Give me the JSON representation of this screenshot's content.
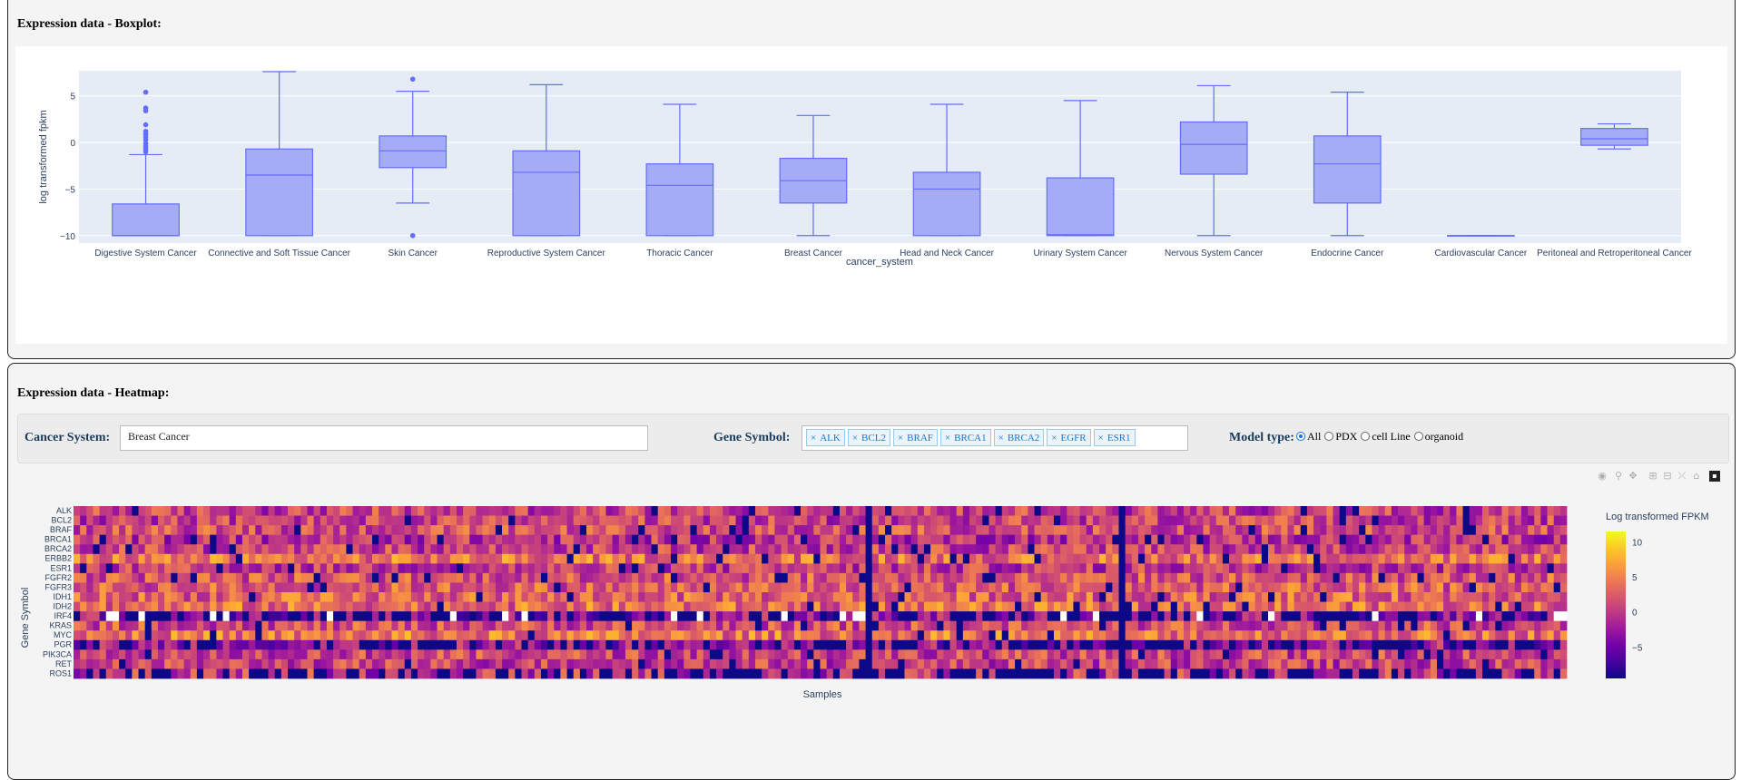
{
  "boxplot": {
    "title": "Expression data - Boxplot:",
    "chart_data": {
      "type": "box",
      "xlabel": "cancer_system",
      "ylabel": "log transformed fpkm",
      "ylim": [
        -10.8,
        7.7
      ],
      "yticks": [
        -10,
        -5,
        0,
        5
      ],
      "ytick_labels": [
        "−10",
        "−5",
        "0",
        "5"
      ],
      "color": "#636efa",
      "fill": "#a5abf4",
      "background": "#e5ecf6",
      "categories": [
        "Digestive System Cancer",
        "Connective and Soft Tissue Cancer",
        "Skin Cancer",
        "Reproductive System Cancer",
        "Thoracic Cancer",
        "Breast Cancer",
        "Head and Neck Cancer",
        "Urinary System Cancer",
        "Nervous System Cancer",
        "Endocrine Cancer",
        "Cardiovascular Cancer",
        "Peritoneal and Retroperitoneal Cancer"
      ],
      "boxes": [
        {
          "lf": -10,
          "q1": -10,
          "median": -10,
          "q3": -6.6,
          "uf": -1.3,
          "outliers": [
            -1.0,
            -0.7,
            -0.4,
            -0.1,
            0.3,
            0.6,
            0.9,
            1.2,
            1.9,
            3.4,
            3.7,
            5.4
          ]
        },
        {
          "lf": -10,
          "q1": -10,
          "median": -3.5,
          "q3": -0.7,
          "uf": 7.6,
          "outliers": []
        },
        {
          "lf": -6.5,
          "q1": -2.7,
          "median": -0.9,
          "q3": 0.7,
          "uf": 5.5,
          "outliers": [
            -10,
            6.8
          ]
        },
        {
          "lf": -10,
          "q1": -10,
          "median": -3.2,
          "q3": -0.9,
          "uf": 6.2,
          "outliers": []
        },
        {
          "lf": -10,
          "q1": -10,
          "median": -4.6,
          "q3": -2.3,
          "uf": 4.1,
          "outliers": []
        },
        {
          "lf": -10,
          "q1": -6.5,
          "median": -4.1,
          "q3": -1.7,
          "uf": 2.9,
          "outliers": []
        },
        {
          "lf": -10,
          "q1": -10,
          "median": -5.0,
          "q3": -3.2,
          "uf": 4.1,
          "outliers": []
        },
        {
          "lf": -10,
          "q1": -10,
          "median": -9.9,
          "q3": -3.8,
          "uf": 4.5,
          "outliers": []
        },
        {
          "lf": -10,
          "q1": -3.4,
          "median": -0.2,
          "q3": 2.2,
          "uf": 6.1,
          "outliers": []
        },
        {
          "lf": -10,
          "q1": -6.5,
          "median": -2.3,
          "q3": 0.7,
          "uf": 5.4,
          "outliers": []
        },
        {
          "lf": -10,
          "q1": -10,
          "median": -10,
          "q3": -10,
          "uf": -10,
          "outliers": []
        },
        {
          "lf": -0.7,
          "q1": -0.3,
          "median": 0.4,
          "q3": 1.5,
          "uf": 2.0,
          "outliers": []
        }
      ]
    }
  },
  "heatmap": {
    "title": "Expression data - Heatmap:",
    "controls": {
      "cancer_label": "Cancer System:",
      "cancer_value": "Breast Cancer",
      "gene_label": "Gene Symbol:",
      "genes": [
        "ALK",
        "BCL2",
        "BRAF",
        "BRCA1",
        "BRCA2",
        "EGFR",
        "ESR1"
      ],
      "model_label": "Model type:",
      "model_options": [
        "All",
        "PDX",
        "cell Line",
        "organoid"
      ],
      "model_selected": "All"
    },
    "modebar_icons": [
      "camera-icon",
      "zoom-icon",
      "pan-icon",
      "zoom-in-icon",
      "zoom-out-icon",
      "autoscale-icon",
      "home-icon",
      "plotly-logo-icon"
    ],
    "chart_data": {
      "type": "heatmap",
      "xlabel": "Samples",
      "ylabel": "Gene Symbol",
      "genes": [
        "ALK",
        "BCL2",
        "BRAF",
        "BRCA1",
        "BRCA2",
        "ERBB2",
        "ESR1",
        "FGFR2",
        "FGFR3",
        "IDH1",
        "IDH2",
        "IRF4",
        "KRAS",
        "MYC",
        "PGR",
        "PIK3CA",
        "RET",
        "ROS1"
      ],
      "sample_count": 230,
      "colorbar_title": "Log transformed FPKM",
      "colorbar_range": [
        -9.5,
        11.5
      ],
      "colorbar_ticks": [
        10,
        5,
        0,
        -5
      ],
      "colorbar_tick_labels": [
        "10",
        "5",
        "0",
        "−5"
      ],
      "colorscale": [
        "#0d0887",
        "#46039f",
        "#7201a8",
        "#9c179e",
        "#bd3786",
        "#d8576b",
        "#ed7953",
        "#fb9f3a",
        "#fdca26",
        "#f0f921"
      ],
      "low_samples": [
        122,
        161
      ],
      "gene_means": [
        0.5,
        0.5,
        1.5,
        -0.5,
        0.5,
        4.0,
        0.0,
        2.0,
        2.5,
        3.0,
        3.5,
        -6.0,
        1.5,
        4.0,
        -5.5,
        1.0,
        0.5,
        -3.0
      ]
    }
  }
}
